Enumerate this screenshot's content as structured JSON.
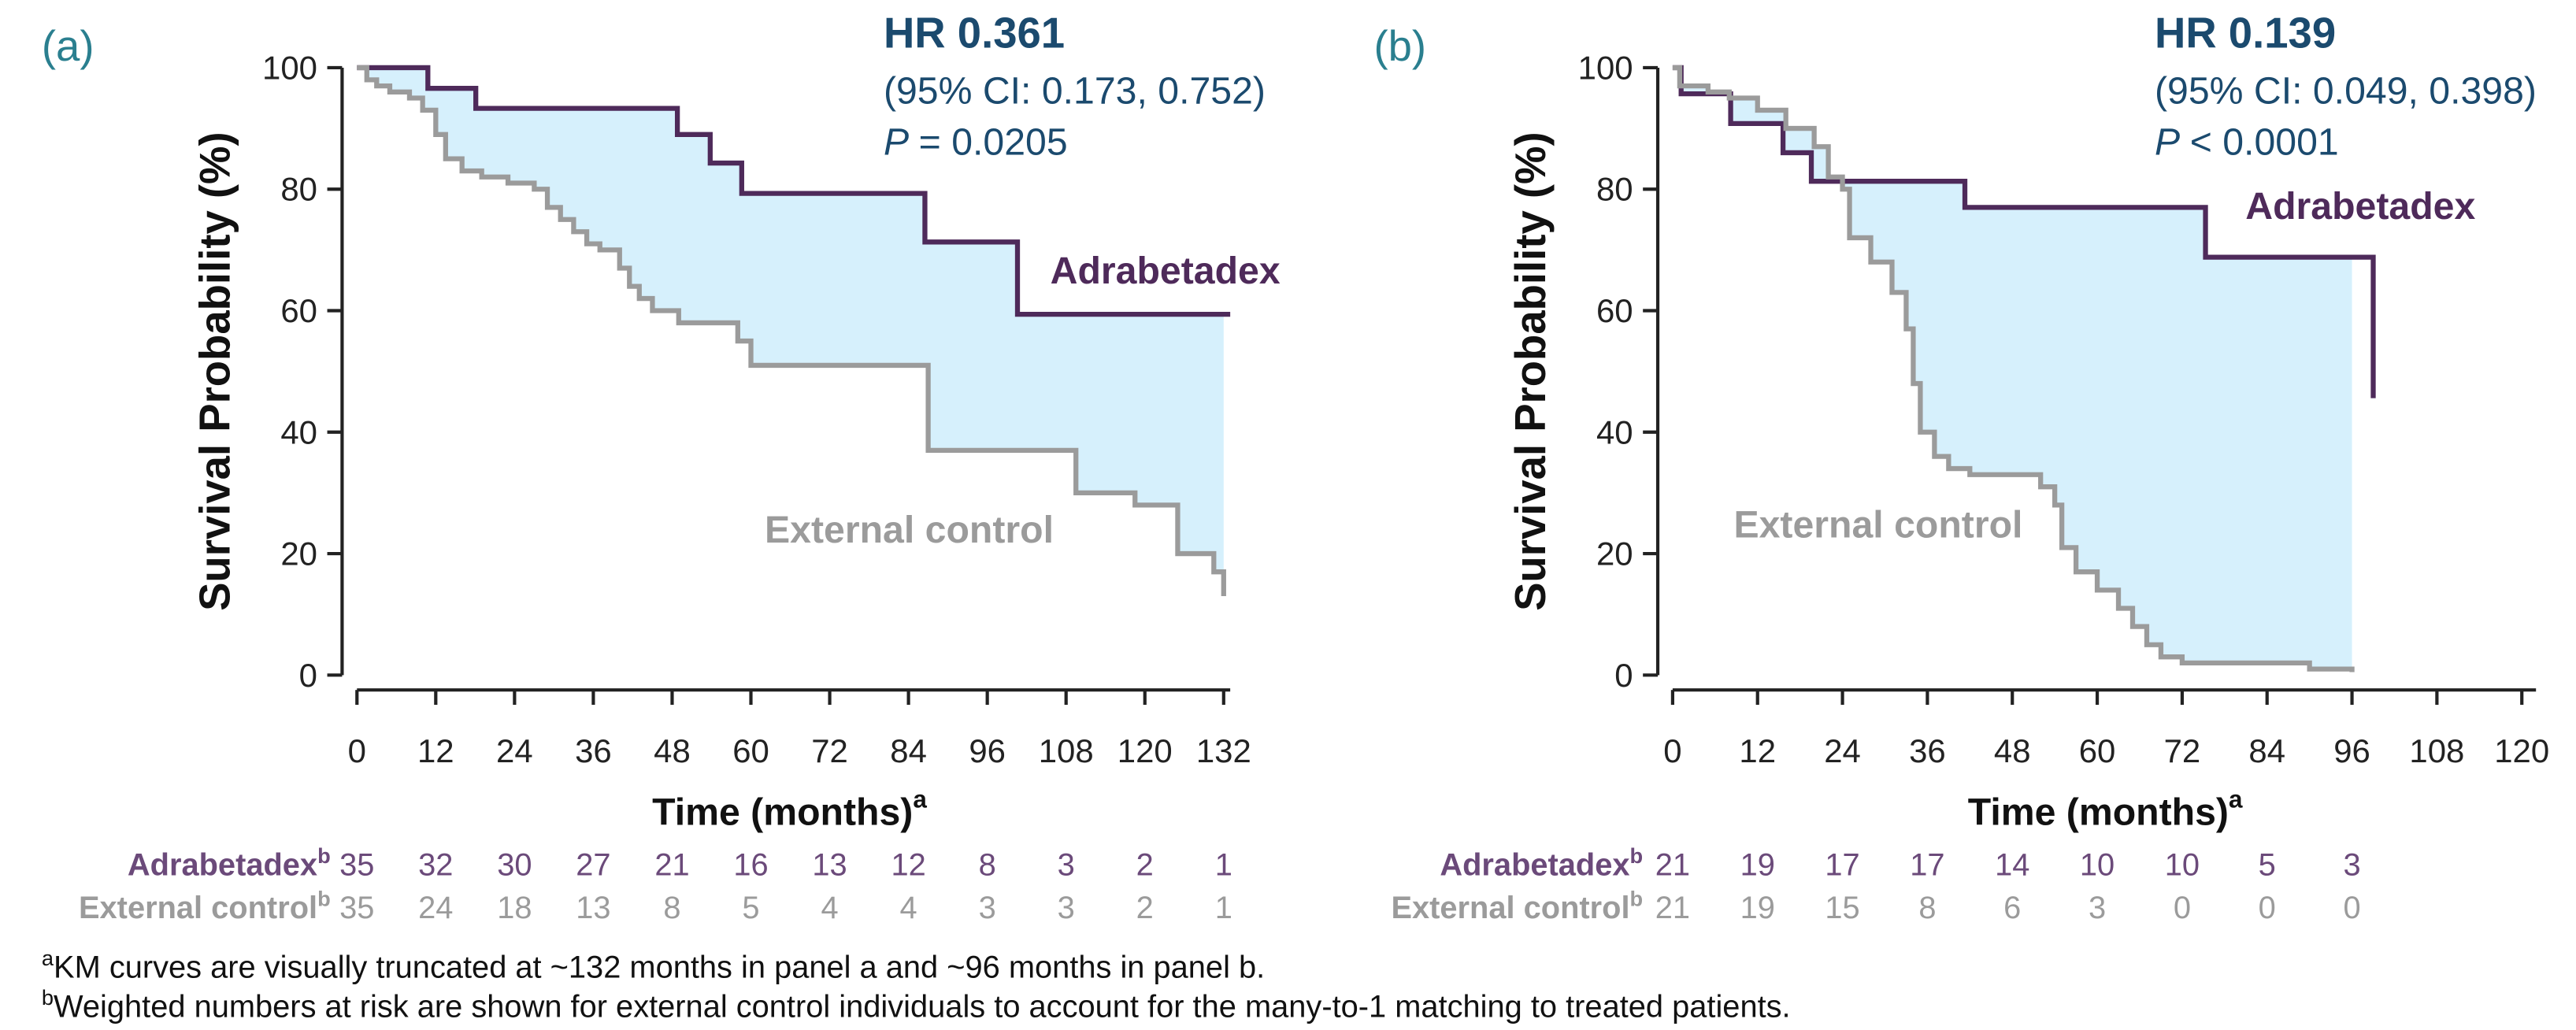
{
  "chart_data": [
    {
      "type": "line",
      "step": true,
      "panel": "(a)",
      "hr": "HR 0.361",
      "ci": "(95% CI: 0.173, 0.752)",
      "p_symbol": "P",
      "p_text": "= 0.0205",
      "ylabel": "Survival Probability (%)",
      "xlabel": "Time (months)",
      "xlabel_note": "a",
      "xlim": [
        0,
        133
      ],
      "xticks": [
        0,
        12,
        24,
        36,
        48,
        60,
        72,
        84,
        96,
        108,
        120,
        132
      ],
      "ylim": [
        0,
        100
      ],
      "yticks": [
        0,
        20,
        40,
        60,
        80,
        100
      ],
      "fill_color": "#d6f0fc",
      "series": [
        {
          "name": "Adrabetadex",
          "color": "#4e2a5a",
          "x": [
            0,
            10.8,
            18.1,
            48.8,
            53.8,
            58.6,
            86.5,
            100.6,
            133
          ],
          "values": [
            100,
            96.6,
            93.3,
            89,
            84.3,
            79.3,
            71.3,
            59.4,
            59.4
          ]
        },
        {
          "name": "External control",
          "color": "#9b9b9b",
          "x": [
            0,
            1.5,
            3,
            5,
            8,
            10,
            12,
            13.5,
            16,
            19,
            23,
            27,
            29,
            31,
            33,
            35,
            37,
            40,
            41.5,
            43,
            45,
            49,
            58,
            60,
            87,
            109.5,
            118.5,
            125,
            130.5,
            132
          ],
          "values": [
            100,
            98,
            97,
            96,
            95,
            93,
            89,
            85,
            83,
            82,
            81,
            80,
            77,
            75,
            73,
            71,
            70,
            67,
            64,
            62,
            60,
            58,
            55,
            51,
            37,
            30,
            28,
            20,
            17,
            13
          ]
        }
      ],
      "risk_table": {
        "rows": [
          {
            "label": "Adrabetadex",
            "note": "b",
            "color": "#6b4a7a",
            "values": [
              35,
              32,
              30,
              27,
              21,
              16,
              13,
              12,
              8,
              3,
              2,
              1
            ]
          },
          {
            "label": "External control",
            "note": "b",
            "color": "#9b9b9b",
            "values": [
              35,
              24,
              18,
              13,
              8,
              5,
              4,
              4,
              3,
              3,
              2,
              1
            ]
          }
        ]
      }
    },
    {
      "type": "line",
      "step": true,
      "panel": "(b)",
      "hr": "HR 0.139",
      "ci": "(95% CI: 0.049, 0.398)",
      "p_symbol": "P",
      "p_text": "< 0.0001",
      "ylabel": "Survival Probability (%)",
      "xlabel": "Time (months)",
      "xlabel_note": "a",
      "xlim": [
        0,
        122
      ],
      "xticks": [
        0,
        12,
        24,
        36,
        48,
        60,
        72,
        84,
        96,
        108,
        120
      ],
      "ylim": [
        0,
        100
      ],
      "yticks": [
        0,
        20,
        40,
        60,
        80,
        100
      ],
      "fill_color": "#d6f0fc",
      "series": [
        {
          "name": "Adrabetadex",
          "color": "#4e2a5a",
          "x": [
            0,
            1.2,
            8.2,
            15.6,
            19.6,
            41.3,
            75.3,
            99
          ],
          "values": [
            100,
            95.7,
            90.8,
            86,
            81.3,
            77,
            68.8,
            45.6
          ]
        },
        {
          "name": "External control",
          "color": "#9b9b9b",
          "x": [
            0,
            1,
            5,
            8,
            12,
            16,
            20,
            22,
            24,
            25,
            28,
            31,
            33,
            34,
            35,
            37,
            39,
            42,
            48,
            52,
            54,
            55,
            57,
            60,
            63,
            65,
            67,
            69,
            72,
            88,
            90,
            96
          ],
          "values": [
            100,
            97,
            96,
            95,
            93,
            90,
            87,
            82,
            80,
            72,
            68,
            63,
            57,
            48,
            40,
            36,
            34,
            33,
            33,
            31,
            28,
            21,
            17,
            14,
            11,
            8,
            5,
            3,
            2,
            2,
            1,
            0.5
          ]
        }
      ],
      "risk_table": {
        "rows": [
          {
            "label": "Adrabetadex",
            "note": "b",
            "color": "#6b4a7a",
            "values": [
              21,
              19,
              17,
              17,
              14,
              10,
              10,
              5,
              3
            ]
          },
          {
            "label": "External control",
            "note": "b",
            "color": "#9b9b9b",
            "values": [
              21,
              19,
              15,
              8,
              6,
              3,
              0,
              0,
              0
            ]
          }
        ]
      }
    }
  ],
  "footnotes": [
    {
      "marker": "a",
      "text": "KM curves are visually truncated at ~132 months in panel a and ~96 months in panel b."
    },
    {
      "marker": "b",
      "text": "Weighted numbers at risk are shown for external control individuals to account for the many-to-1 matching to treated patients."
    }
  ]
}
